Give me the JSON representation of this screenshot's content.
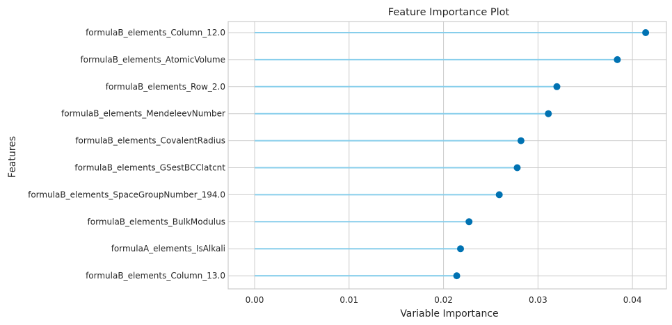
{
  "chart_data": {
    "type": "lollipop",
    "title": "Feature Importance Plot",
    "xlabel": "Variable Importance",
    "ylabel": "Features",
    "xlim": [
      -0.0028,
      0.0436
    ],
    "xticks": [
      "0.00",
      "0.01",
      "0.02",
      "0.03",
      "0.04"
    ],
    "xtick_values": [
      0.0,
      0.01,
      0.02,
      0.03,
      0.04
    ],
    "grid": true,
    "legend": "none",
    "colors": {
      "stem": "#87ceeb",
      "marker": "#0072b2",
      "grid": "#cccccc",
      "frame": "#cccccc"
    },
    "categories": [
      "formulaB_elements_Column_12.0",
      "formulaB_elements_AtomicVolume",
      "formulaB_elements_Row_2.0",
      "formulaB_elements_MendeleevNumber",
      "formulaB_elements_CovalentRadius",
      "formulaB_elements_GSestBCClatcnt",
      "formulaB_elements_SpaceGroupNumber_194.0",
      "formulaB_elements_BulkModulus",
      "formulaA_elements_IsAlkali",
      "formulaB_elements_Column_13.0"
    ],
    "values": [
      0.0414,
      0.0384,
      0.032,
      0.0311,
      0.0282,
      0.0278,
      0.0259,
      0.0227,
      0.0218,
      0.0214
    ]
  }
}
